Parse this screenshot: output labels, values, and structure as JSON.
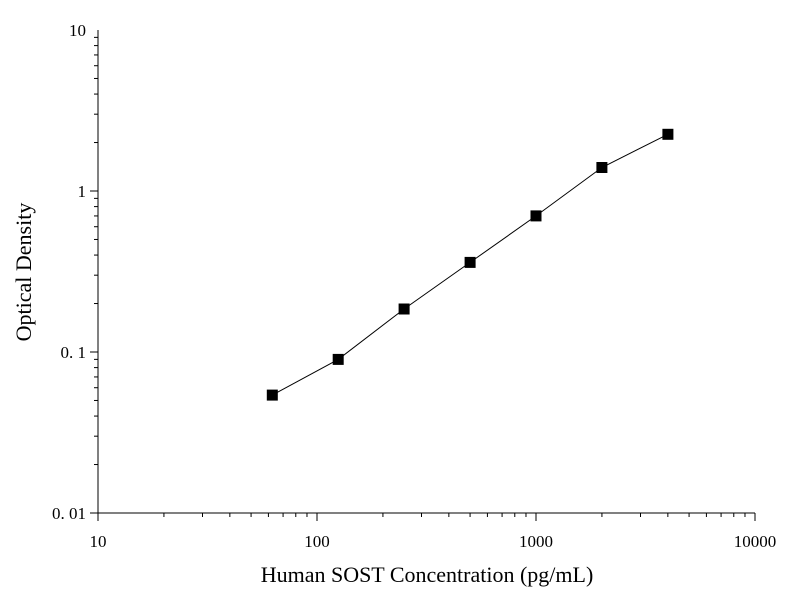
{
  "chart_data": {
    "type": "scatter",
    "xlabel": "Human SOST Concentration (pg/mL)",
    "ylabel": "Optical Density",
    "x_scale": "log",
    "y_scale": "log",
    "xlim": [
      10,
      10000
    ],
    "ylim": [
      0.01,
      10
    ],
    "x_ticks": [
      {
        "value": 10,
        "label": "10"
      },
      {
        "value": 100,
        "label": "100"
      },
      {
        "value": 1000,
        "label": "1000"
      },
      {
        "value": 10000,
        "label": "10000"
      }
    ],
    "y_ticks": [
      {
        "value": 0.01,
        "label": "0. 01"
      },
      {
        "value": 0.1,
        "label": "0. 1"
      },
      {
        "value": 1,
        "label": "1"
      },
      {
        "value": 10,
        "label": "10"
      }
    ],
    "grid": false,
    "marker": "square",
    "connected": true,
    "colors": {
      "marker": "#000000",
      "line": "#000000",
      "axis": "#000000"
    },
    "series": [
      {
        "x": [
          62.5,
          125,
          250,
          500,
          1000,
          2000,
          4000
        ],
        "y": [
          0.054,
          0.09,
          0.185,
          0.36,
          0.7,
          1.4,
          2.25
        ]
      }
    ]
  }
}
